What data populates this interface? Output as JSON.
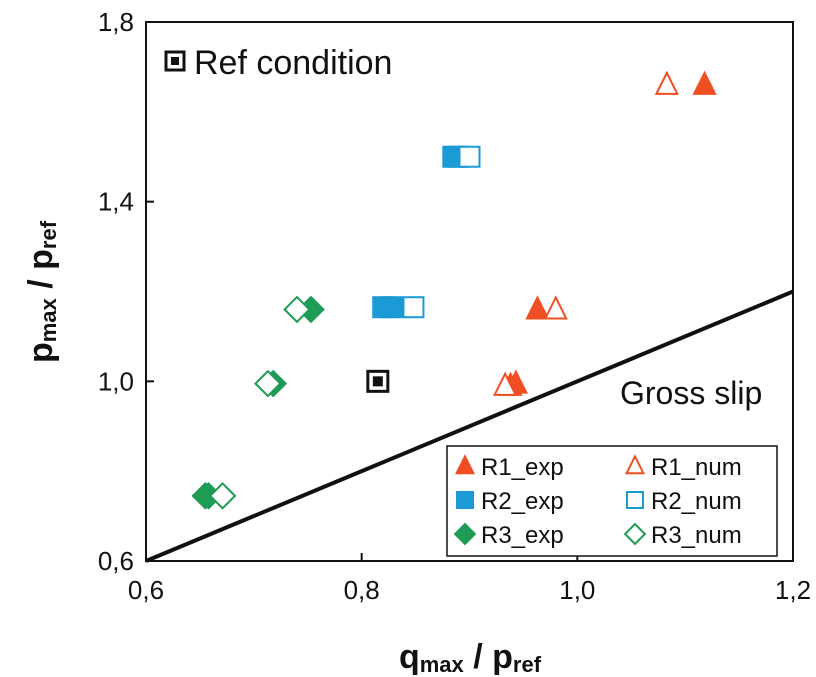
{
  "chart_data": {
    "type": "scatter",
    "xlabel": {
      "main": "q",
      "sub": "max",
      "sep": " / ",
      "main2": "p",
      "sub2": "ref"
    },
    "ylabel": {
      "main": "p",
      "sub": "max",
      "sep": " / ",
      "main2": "p",
      "sub2": "ref"
    },
    "xlim": [
      0.6,
      1.2
    ],
    "ylim": [
      0.6,
      1.8
    ],
    "x_ticks": [
      0.6,
      0.8,
      1.0,
      1.2
    ],
    "x_tick_labels": [
      "0,6",
      "0,8",
      "1,0",
      "1,2"
    ],
    "y_ticks": [
      0.6,
      1.0,
      1.4,
      1.8
    ],
    "y_tick_labels": [
      "0,6",
      "1,0",
      "1,4",
      "1,8"
    ],
    "grid": false,
    "legend_position": "bottom-right",
    "boundary_line": {
      "label": "Gross slip",
      "x": [
        0.6,
        1.2
      ],
      "y": [
        0.6,
        1.2
      ]
    },
    "reference": {
      "label": "Ref condition",
      "x": 0.815,
      "y": 1.0
    },
    "series": [
      {
        "name": "R1_exp",
        "marker": "triangle",
        "filled": true,
        "color": "#f04e23",
        "points": [
          [
            1.118,
            1.66
          ],
          [
            0.963,
            1.16
          ],
          [
            0.943,
            0.995
          ],
          [
            0.938,
            0.99
          ]
        ]
      },
      {
        "name": "R1_num",
        "marker": "triangle",
        "filled": false,
        "color": "#f04e23",
        "points": [
          [
            1.083,
            1.66
          ],
          [
            0.98,
            1.16
          ],
          [
            0.933,
            0.99
          ]
        ]
      },
      {
        "name": "R2_exp",
        "marker": "square",
        "filled": true,
        "color": "#1b9ad6",
        "points": [
          [
            0.885,
            1.5
          ],
          [
            0.89,
            1.5
          ],
          [
            0.82,
            1.165
          ],
          [
            0.828,
            1.165
          ]
        ]
      },
      {
        "name": "R2_num",
        "marker": "square",
        "filled": false,
        "color": "#1b9ad6",
        "points": [
          [
            0.9,
            1.5
          ],
          [
            0.848,
            1.165
          ]
        ]
      },
      {
        "name": "R3_exp",
        "marker": "diamond",
        "filled": true,
        "color": "#1e9b54",
        "points": [
          [
            0.753,
            1.16
          ],
          [
            0.718,
            0.995
          ],
          [
            0.655,
            0.745
          ],
          [
            0.658,
            0.745
          ]
        ]
      },
      {
        "name": "R3_num",
        "marker": "diamond",
        "filled": false,
        "color": "#1e9b54",
        "points": [
          [
            0.74,
            1.16
          ],
          [
            0.713,
            0.995
          ],
          [
            0.671,
            0.745
          ]
        ]
      }
    ]
  }
}
